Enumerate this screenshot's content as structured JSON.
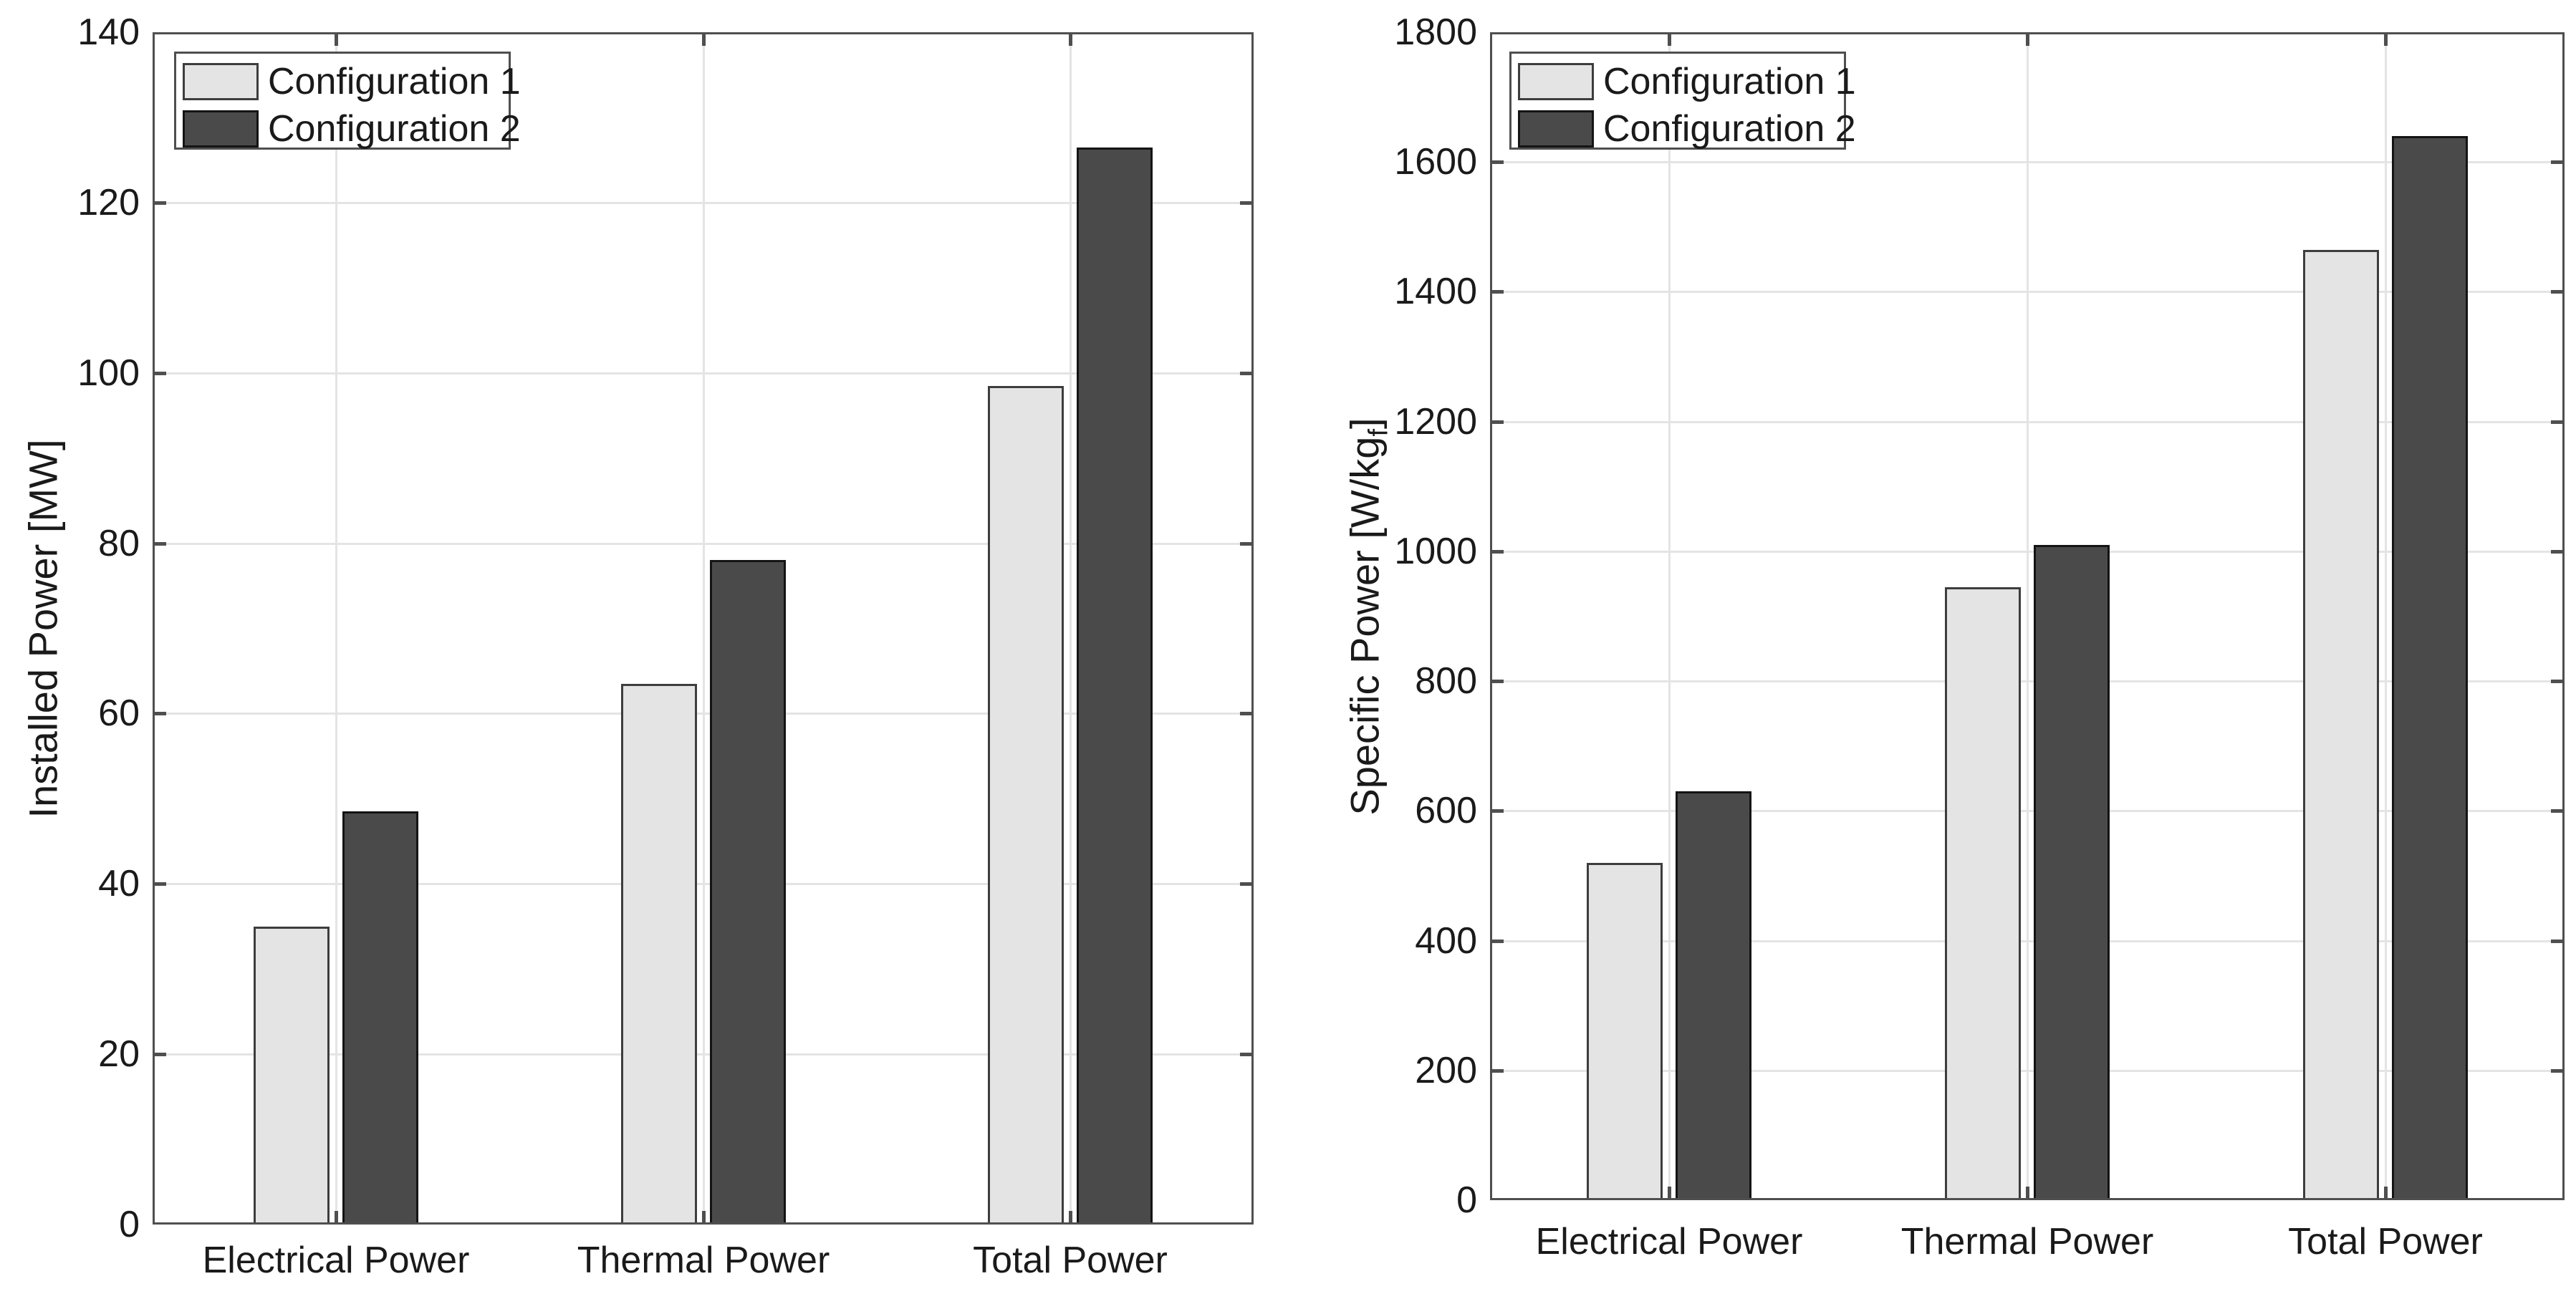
{
  "figure": {
    "background": "#ffffff",
    "description": "Two grouped bar charts comparing Configuration 1 and Configuration 2"
  },
  "colors": {
    "config1_fill": "#e4e4e4",
    "config1_border": "#3d3d3d",
    "config2_fill": "#4a4a4a",
    "config2_border": "#141414",
    "gridline": "#e4e4e4",
    "spine": "#4f4f4f",
    "text": "#1a1a1a",
    "legend_background": "#ffffff"
  },
  "legend": {
    "position": "top-left",
    "items": [
      {
        "label": "Configuration 1",
        "fill": "#e4e4e4",
        "border": "#3d3d3d"
      },
      {
        "label": "Configuration 2",
        "fill": "#4a4a4a",
        "border": "#141414"
      }
    ]
  },
  "chart_data": [
    {
      "id": "installed-power",
      "type": "bar",
      "title": "",
      "categories": [
        "Electrical Power",
        "Thermal Power",
        "Total Power"
      ],
      "series": [
        {
          "name": "Configuration 1",
          "values": [
            35,
            63.5,
            98.5
          ]
        },
        {
          "name": "Configuration 2",
          "values": [
            48.5,
            78,
            126.5
          ]
        }
      ],
      "xlabel": "",
      "ylabel": "Installed Power [MW",
      "ylabel_sub": "",
      "ylabel_close": "]",
      "ylim": [
        0,
        140
      ],
      "yticks": [
        0,
        20,
        40,
        60,
        80,
        100,
        120,
        140
      ],
      "grid": true,
      "legend_position": "top-left"
    },
    {
      "id": "specific-power",
      "type": "bar",
      "title": "",
      "categories": [
        "Electrical Power",
        "Thermal Power",
        "Total Power"
      ],
      "series": [
        {
          "name": "Configuration 1",
          "values": [
            520,
            945,
            1465
          ]
        },
        {
          "name": "Configuration 2",
          "values": [
            630,
            1010,
            1640
          ]
        }
      ],
      "xlabel": "",
      "ylabel": "Specific Power [W/kg",
      "ylabel_sub": "f",
      "ylabel_close": "]",
      "ylim": [
        0,
        1800
      ],
      "yticks": [
        0,
        200,
        400,
        600,
        800,
        1000,
        1200,
        1400,
        1600,
        1800
      ],
      "grid": true,
      "legend_position": "top-left"
    }
  ]
}
